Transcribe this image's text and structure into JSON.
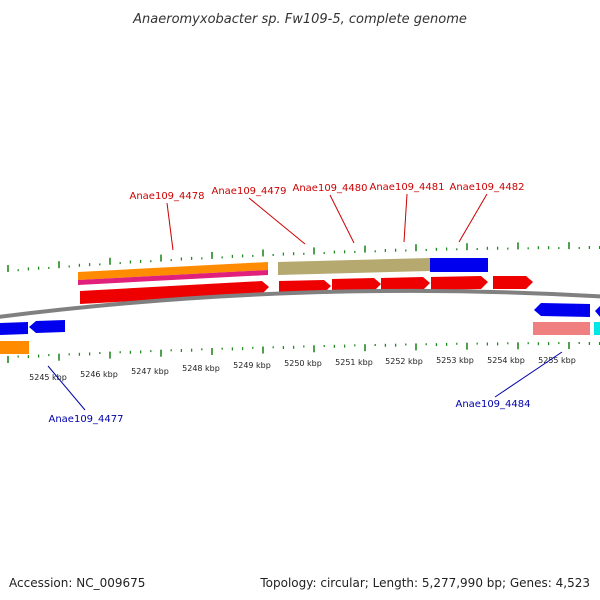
{
  "title": "Anaeromyxobacter sp. Fw109-5, complete genome",
  "footer": {
    "accession": "Accession: NC_009675",
    "summary": "Topology: circular; Length: 5,277,990 bp; Genes: 4,523"
  },
  "scale": {
    "tick_labels": [
      "5245 kbp",
      "5246 kbp",
      "5247 kbp",
      "5248 kbp",
      "5249 kbp",
      "5250 kbp",
      "5251 kbp",
      "5252 kbp",
      "5253 kbp",
      "5254 kbp",
      "5255 kbp"
    ]
  },
  "gene_labels": {
    "forward": [
      "Anae109_4478",
      "Anae109_4479",
      "Anae109_4480",
      "Anae109_4481",
      "Anae109_4482"
    ],
    "reverse": [
      "Anae109_4477",
      "Anae109_4484"
    ]
  },
  "colors": {
    "backbone": "#808080",
    "tick": "#228b22",
    "cds": "#ff0000",
    "forward_label": "#cc0000",
    "reverse_label": "#0000aa",
    "blue_feature": "#0000ee",
    "orange_feature": "#ff8c00",
    "magenta_feature": "#e0207a",
    "olive_feature": "#b5a96f",
    "pink_feature": "#f08080",
    "cyan_feature": "#00e5e5"
  }
}
